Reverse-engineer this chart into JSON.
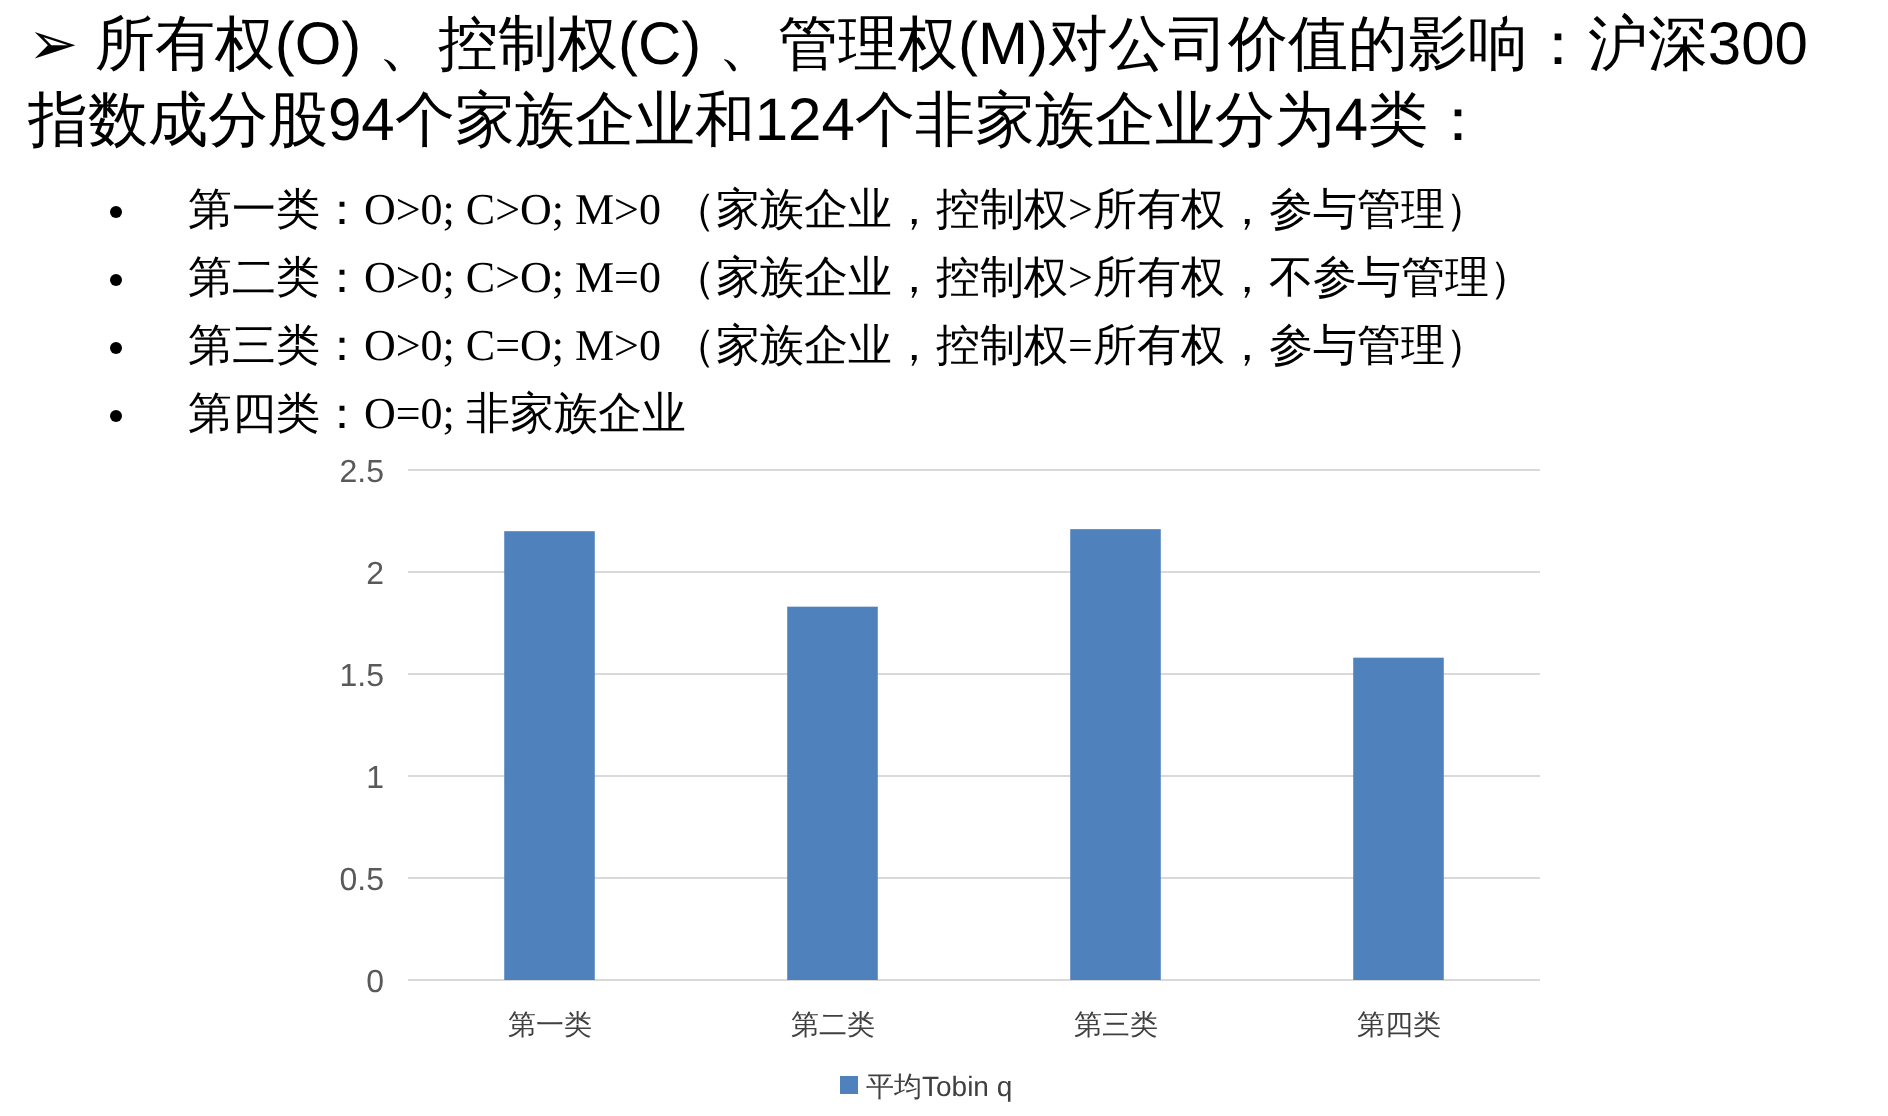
{
  "chart_data": {
    "type": "bar",
    "title": "➢ 所有权(O) 、控制权(C) 、管理权(M)对公司价值的影响：沪深300指数成分股94个家族企业和124个非家族企业分为4类：",
    "annotations": [
      "第一类：O>0; C>O; M>0 （家族企业，控制权>所有权，参与管理）",
      "第二类：O>0; C>O; M=0 （家族企业，控制权>所有权，不参与管理）",
      "第三类：O>0; C=O; M>0 （家族企业，控制权=所有权，参与管理）",
      "第四类：O=0; 非家族企业"
    ],
    "categories": [
      "第一类",
      "第二类",
      "第三类",
      "第四类"
    ],
    "series": [
      {
        "name": "平均Tobin q",
        "color": "#4f81bd",
        "values": [
          2.2,
          1.83,
          2.21,
          1.58
        ]
      }
    ],
    "ylim": [
      0,
      2.5
    ],
    "yticks": [
      0,
      0.5,
      1,
      1.5,
      2,
      2.5
    ],
    "grid": "y",
    "legend": "bottom"
  }
}
